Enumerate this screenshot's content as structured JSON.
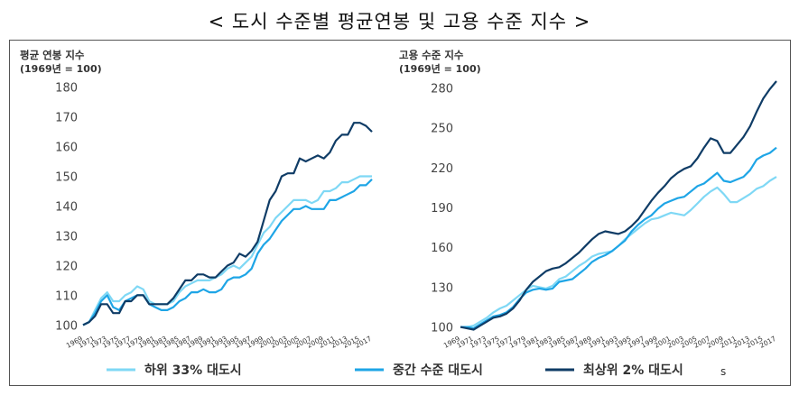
{
  "title": "< 도시 수준별 평균연봉 및 고용 수준 지수 >",
  "chart_data": [
    {
      "type": "line",
      "title": "평균 연봉 지수",
      "subtitle": "(1969년 = 100)",
      "ylim": [
        98,
        182
      ],
      "yticks": [
        100,
        110,
        120,
        130,
        140,
        150,
        160,
        170,
        180
      ],
      "x": [
        1969,
        1970,
        1971,
        1972,
        1973,
        1974,
        1975,
        1976,
        1977,
        1978,
        1979,
        1980,
        1981,
        1982,
        1983,
        1984,
        1985,
        1986,
        1987,
        1988,
        1989,
        1990,
        1991,
        1992,
        1993,
        1994,
        1995,
        1996,
        1997,
        1998,
        1999,
        2000,
        2001,
        2002,
        2003,
        2004,
        2005,
        2006,
        2007,
        2008,
        2009,
        2010,
        2011,
        2012,
        2013,
        2014,
        2015,
        2016,
        2017
      ],
      "xticks": [
        1969,
        1971,
        1973,
        1975,
        1977,
        1979,
        1981,
        1983,
        1985,
        1987,
        1989,
        1991,
        1993,
        1995,
        1997,
        1999,
        2001,
        2003,
        2005,
        2007,
        2009,
        2011,
        2013,
        2015,
        2017
      ],
      "series": [
        {
          "name": "하위 33% 대도시",
          "color": "#7fd8f5",
          "values": [
            100,
            101,
            105,
            109,
            111,
            108,
            108,
            110,
            111,
            113,
            112,
            108,
            107,
            107,
            107,
            108,
            111,
            113,
            114,
            115,
            115,
            115,
            116,
            117,
            119,
            120,
            119,
            121,
            123,
            127,
            131,
            133,
            136,
            138,
            140,
            142,
            142,
            142,
            141,
            142,
            145,
            145,
            146,
            148,
            148,
            149,
            150,
            150,
            150
          ]
        },
        {
          "name": "중간 수준 대도시",
          "color": "#1ea5e6",
          "values": [
            100,
            101,
            104,
            108,
            110,
            106,
            105,
            108,
            109,
            110,
            110,
            107,
            106,
            105,
            105,
            106,
            108,
            109,
            111,
            111,
            112,
            111,
            111,
            112,
            115,
            116,
            116,
            117,
            119,
            124,
            127,
            129,
            132,
            135,
            137,
            139,
            139,
            140,
            139,
            139,
            139,
            142,
            142,
            143,
            144,
            145,
            147,
            147,
            149
          ]
        },
        {
          "name": "최상위 2% 대도시",
          "color": "#0f3c66",
          "values": [
            100,
            101,
            103,
            107,
            107,
            104,
            104,
            108,
            108,
            110,
            110,
            107,
            107,
            107,
            107,
            109,
            112,
            115,
            115,
            117,
            117,
            116,
            116,
            118,
            120,
            121,
            124,
            123,
            125,
            128,
            135,
            142,
            145,
            150,
            151,
            151,
            156,
            155,
            156,
            157,
            156,
            158,
            162,
            164,
            164,
            168,
            168,
            167,
            165
          ]
        }
      ]
    },
    {
      "type": "line",
      "title": "고용 수준 지수",
      "subtitle": "(1969년 = 100)",
      "ylim": [
        97,
        285
      ],
      "yticks": [
        100,
        130,
        160,
        190,
        220,
        250,
        280
      ],
      "x": [
        1969,
        1970,
        1971,
        1972,
        1973,
        1974,
        1975,
        1976,
        1977,
        1978,
        1979,
        1980,
        1981,
        1982,
        1983,
        1984,
        1985,
        1986,
        1987,
        1988,
        1989,
        1990,
        1991,
        1992,
        1993,
        1994,
        1995,
        1996,
        1997,
        1998,
        1999,
        2000,
        2001,
        2002,
        2003,
        2004,
        2005,
        2006,
        2007,
        2008,
        2009,
        2010,
        2011,
        2012,
        2013,
        2014,
        2015,
        2016,
        2017
      ],
      "xticks": [
        1969,
        1971,
        1973,
        1975,
        1977,
        1979,
        1981,
        1983,
        1985,
        1987,
        1989,
        1991,
        1993,
        1995,
        1997,
        1999,
        2001,
        2003,
        2005,
        2007,
        2009,
        2011,
        2013,
        2015,
        2017
      ],
      "series": [
        {
          "name": "하위 33% 대도시",
          "color": "#7fd8f5",
          "values": [
            100,
            100,
            101,
            104,
            107,
            111,
            114,
            116,
            120,
            124,
            128,
            131,
            130,
            129,
            131,
            136,
            138,
            142,
            146,
            149,
            153,
            155,
            156,
            157,
            161,
            166,
            170,
            174,
            178,
            181,
            182,
            184,
            186,
            185,
            184,
            188,
            193,
            198,
            202,
            205,
            200,
            194,
            194,
            197,
            200,
            204,
            206,
            210,
            213
          ]
        },
        {
          "name": "중간 수준 대도시",
          "color": "#1ea5e6",
          "values": [
            100,
            100,
            99,
            102,
            105,
            108,
            109,
            111,
            115,
            121,
            126,
            128,
            129,
            128,
            129,
            134,
            135,
            136,
            140,
            144,
            149,
            152,
            154,
            157,
            161,
            165,
            172,
            177,
            181,
            184,
            189,
            193,
            195,
            197,
            198,
            202,
            206,
            208,
            212,
            216,
            210,
            209,
            211,
            213,
            218,
            226,
            229,
            231,
            235
          ]
        },
        {
          "name": "최상위 2% 대도시",
          "color": "#0f3c66",
          "values": [
            100,
            99,
            98,
            101,
            104,
            107,
            108,
            110,
            114,
            120,
            128,
            134,
            138,
            142,
            144,
            145,
            148,
            152,
            156,
            161,
            166,
            170,
            172,
            171,
            170,
            172,
            176,
            181,
            188,
            195,
            201,
            206,
            212,
            216,
            219,
            221,
            227,
            235,
            242,
            240,
            231,
            231,
            237,
            243,
            251,
            262,
            272,
            279,
            285
          ]
        }
      ]
    }
  ],
  "legend": [
    {
      "name": "하위 33% 대도시",
      "color": "#7fd8f5"
    },
    {
      "name": "중간 수준 대도시",
      "color": "#1ea5e6"
    },
    {
      "name": "최상위 2% 대도시",
      "color": "#0f3c66"
    }
  ],
  "legend_extra": "s"
}
